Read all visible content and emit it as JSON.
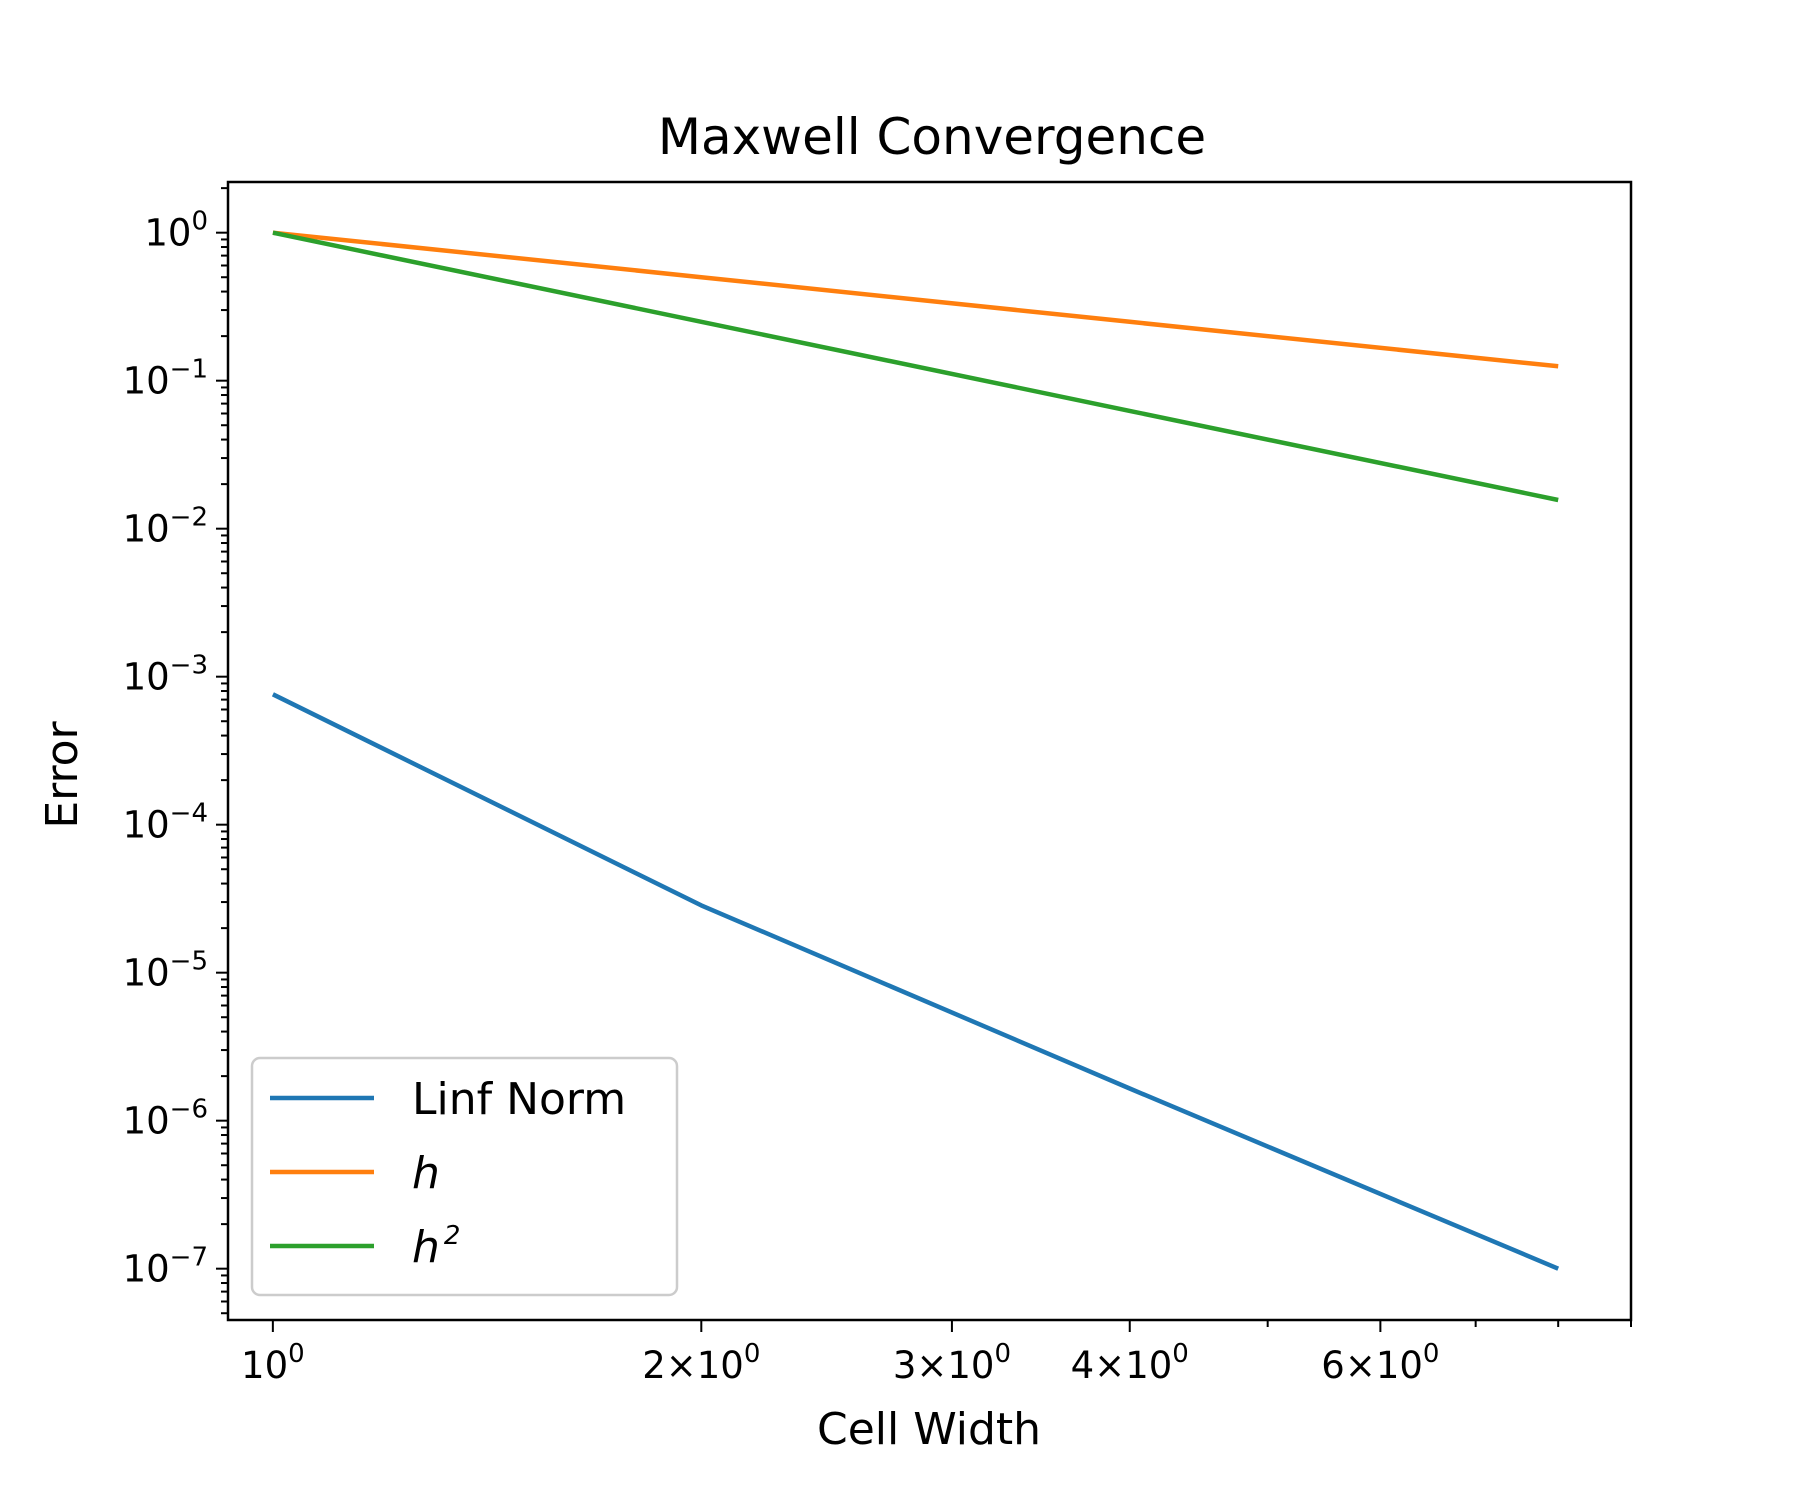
{
  "chart_data": {
    "type": "line",
    "title": "Maxwell Convergence",
    "xlabel": "Cell Width",
    "ylabel": "Error",
    "xscale": "log",
    "yscale": "log",
    "xlim": [
      0.93,
      9.0
    ],
    "ylim": [
      4.5e-08,
      2.2
    ],
    "grid": false,
    "legend_position": "lower-left",
    "x": [
      1,
      2,
      4,
      8
    ],
    "series": [
      {
        "name": "Linf Norm",
        "name_base": "Linf Norm",
        "name_sup": "",
        "italic": false,
        "color": "#1f77b4",
        "values": [
          0.00076,
          2.85e-05,
          1.65e-06,
          1e-07
        ]
      },
      {
        "name": "h",
        "name_base": "h",
        "name_sup": "",
        "italic": true,
        "color": "#ff7f0e",
        "values": [
          1,
          0.5,
          0.25,
          0.125
        ]
      },
      {
        "name": "h^2",
        "name_base": "h",
        "name_sup": "2",
        "italic": true,
        "color": "#2ca02c",
        "values": [
          1,
          0.25,
          0.0625,
          0.015625
        ]
      }
    ],
    "x_ticks": [
      {
        "value": 1,
        "mantissa": "",
        "base": "10",
        "exp": "0"
      },
      {
        "value": 2,
        "mantissa": "2×",
        "base": "10",
        "exp": "0"
      },
      {
        "value": 3,
        "mantissa": "3×",
        "base": "10",
        "exp": "0"
      },
      {
        "value": 4,
        "mantissa": "4×",
        "base": "10",
        "exp": "0"
      },
      {
        "value": 6,
        "mantissa": "6×",
        "base": "10",
        "exp": "0"
      }
    ],
    "y_ticks": [
      {
        "value": 1,
        "base": "10",
        "exp": "0"
      },
      {
        "value": 0.1,
        "base": "10",
        "exp": "−1"
      },
      {
        "value": 0.01,
        "base": "10",
        "exp": "−2"
      },
      {
        "value": 0.001,
        "base": "10",
        "exp": "−3"
      },
      {
        "value": 0.0001,
        "base": "10",
        "exp": "−4"
      },
      {
        "value": 1e-05,
        "base": "10",
        "exp": "−5"
      },
      {
        "value": 1e-06,
        "base": "10",
        "exp": "−6"
      },
      {
        "value": 1e-07,
        "base": "10",
        "exp": "−7"
      }
    ]
  }
}
